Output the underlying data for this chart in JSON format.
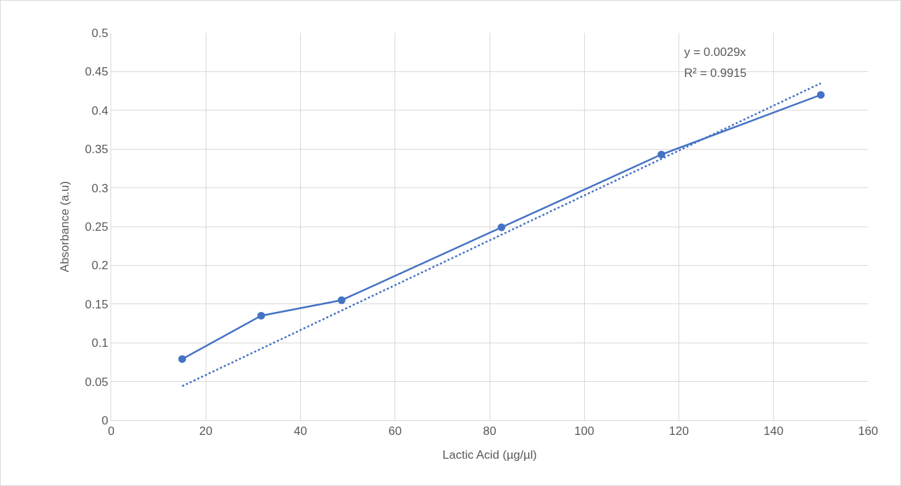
{
  "chart_data": {
    "type": "line",
    "xlabel": "Lactic Acid (µg/µl)",
    "ylabel": "Absorbance (a.u)",
    "annotations": [
      "y = 0.0029x",
      "R² = 0.9915"
    ],
    "series": [
      {
        "color": "#4472c4",
        "x": [
          15,
          31.7,
          48.7,
          82.5,
          116.3,
          150
        ],
        "values": [
          0.079,
          0.135,
          0.155,
          0.249,
          0.343,
          0.42
        ],
        "marker": "circle",
        "line_style": "solid"
      },
      {
        "color": "#4472c4",
        "x": [
          15,
          150
        ],
        "values": [
          0.044,
          0.435
        ],
        "marker": "none",
        "line_style": "dotted"
      }
    ],
    "xlim": [
      0,
      160
    ],
    "xticks": [
      0,
      20,
      40,
      60,
      80,
      100,
      120,
      140,
      160
    ],
    "ylim": [
      0,
      0.5
    ],
    "yticks": [
      0,
      0.05,
      0.1,
      0.15,
      0.2,
      0.25,
      0.3,
      0.35,
      0.4,
      0.45,
      0.5
    ],
    "grid": true
  }
}
